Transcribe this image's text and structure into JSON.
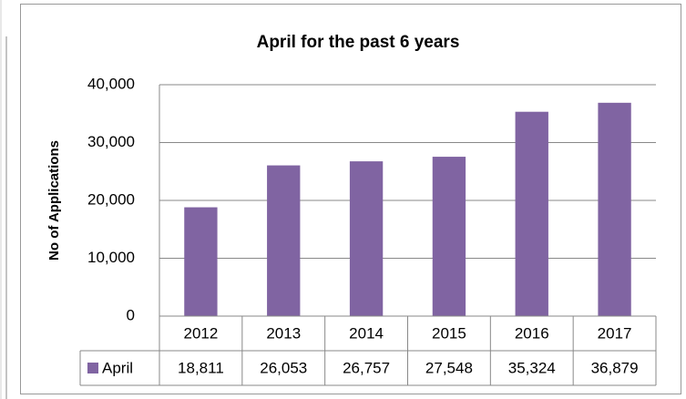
{
  "chart_data": {
    "type": "bar",
    "title": "April for the past 6 years",
    "y_label": "No of Applications",
    "categories": [
      "2012",
      "2013",
      "2014",
      "2015",
      "2016",
      "2017"
    ],
    "series": [
      {
        "name": "April",
        "color": "#8064a2",
        "values": [
          18811,
          26053,
          26757,
          27548,
          35324,
          36879
        ],
        "value_labels": [
          "18,811",
          "26,053",
          "26,757",
          "27,548",
          "35,324",
          "36,879"
        ]
      }
    ],
    "ylim": [
      0,
      40000
    ],
    "yticks": [
      0,
      {
        "value": 10000,
        "label": "10,000"
      },
      {
        "value": 20000,
        "label": "20,000"
      },
      {
        "value": 30000,
        "label": "30,000"
      },
      {
        "value": 40000,
        "label": "40,000"
      }
    ],
    "grid": true,
    "data_table": true
  }
}
